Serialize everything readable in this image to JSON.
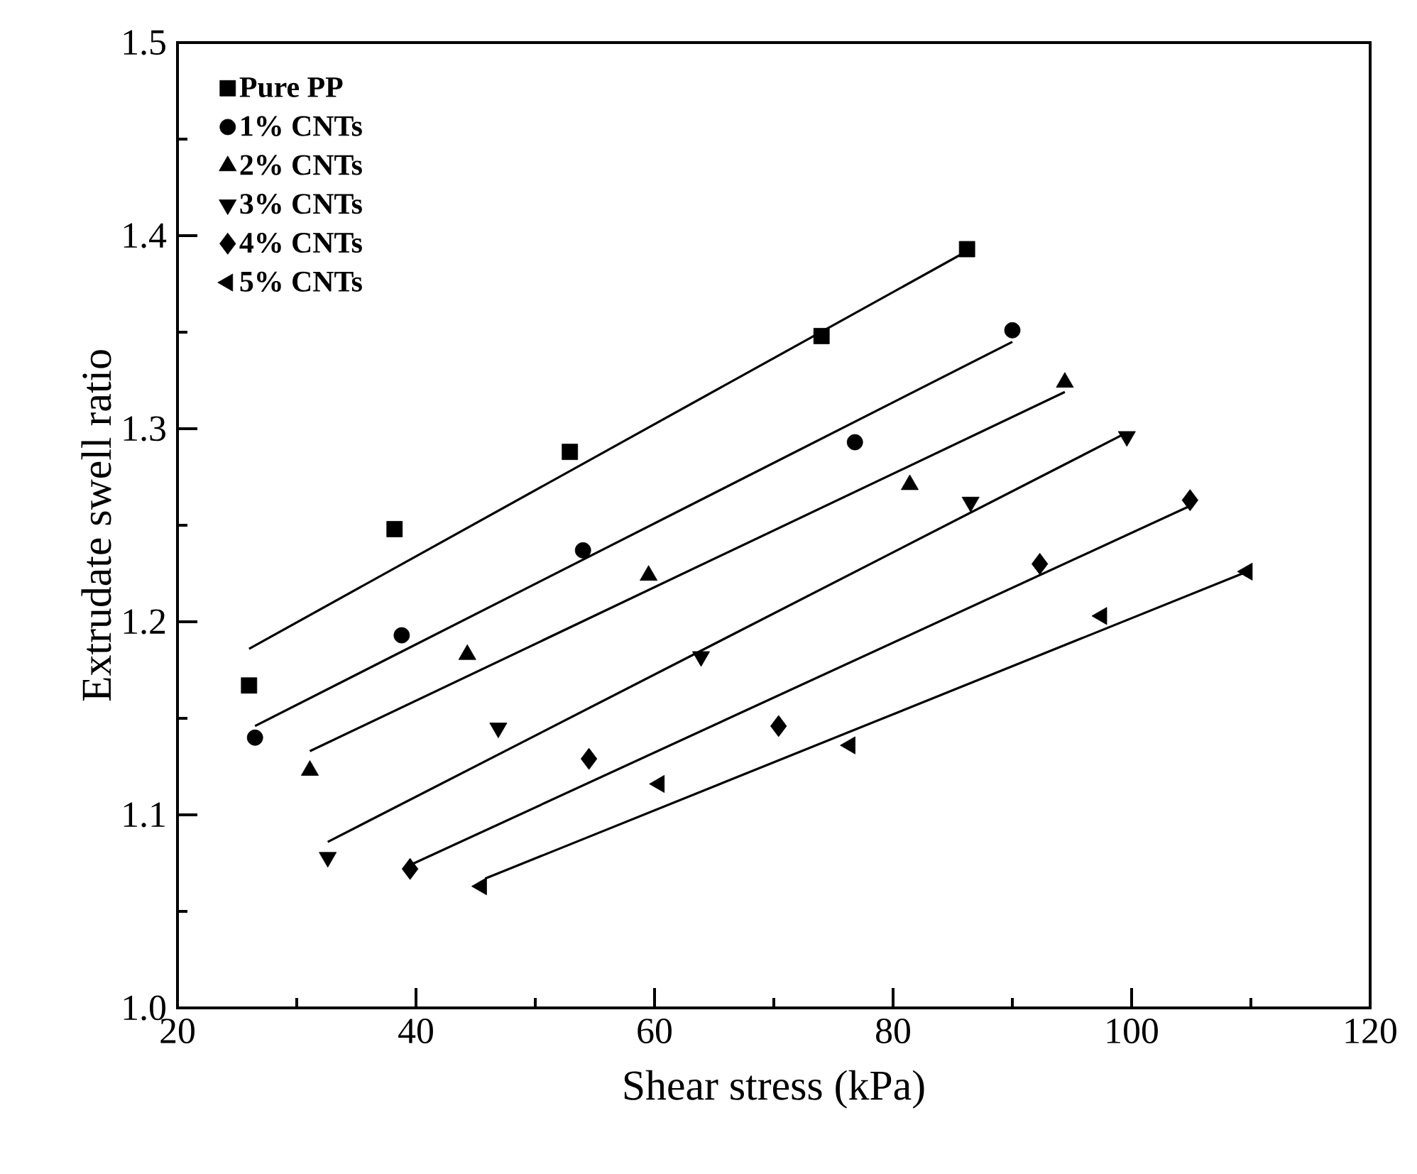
{
  "chart_data": {
    "type": "scatter",
    "xlabel": "Shear stress (kPa)",
    "ylabel": "Extrudate swell ratio",
    "xlim": [
      20,
      120
    ],
    "ylim": [
      1.0,
      1.5
    ],
    "xticks": [
      20,
      40,
      60,
      80,
      100,
      120
    ],
    "yticks": [
      {
        "value": 1.0,
        "label": "1.0"
      },
      1.1,
      1.2,
      1.3,
      1.4,
      1.5
    ],
    "legend": "top left",
    "series": [
      {
        "name": "**Pure PP**",
        "marker": "square",
        "color": "#000000",
        "x": [
          26.0,
          38.2,
          52.9,
          74.0,
          86.2
        ],
        "values": [
          1.167,
          1.248,
          1.288,
          1.348,
          1.393
        ]
      },
      {
        "name": "**1% CNTs**",
        "marker": "circle",
        "color": "#000000",
        "x": [
          26.5,
          38.8,
          54.0,
          76.8,
          90.0
        ],
        "values": [
          1.14,
          1.193,
          1.237,
          1.293,
          1.351
        ]
      },
      {
        "name": "**2% CNTs**",
        "marker": "triangle",
        "color": "#000000",
        "x": [
          31.1,
          44.3,
          59.5,
          81.4,
          94.4
        ],
        "values": [
          1.123,
          1.183,
          1.224,
          1.271,
          1.324
        ]
      },
      {
        "name": "**3% CNTs**",
        "marker": "triangle-down",
        "color": "#000000",
        "x": [
          32.6,
          46.9,
          63.9,
          86.5,
          99.6
        ],
        "values": [
          1.078,
          1.145,
          1.182,
          1.262,
          1.296
        ]
      },
      {
        "name": "**4% CNTs**",
        "marker": "diamond",
        "color": "#000000",
        "x": [
          39.5,
          54.5,
          70.4,
          92.3,
          104.9
        ],
        "values": [
          1.072,
          1.129,
          1.146,
          1.23,
          1.263
        ]
      },
      {
        "name": "**5% CNTs**",
        "marker": "triangle-left",
        "color": "#000000",
        "x": [
          45.5,
          60.4,
          76.4,
          97.5,
          109.7
        ],
        "values": [
          1.063,
          1.116,
          1.136,
          1.203,
          1.226
        ]
      },
      {
        "type": "line",
        "color": "#000000",
        "x": [
          26.0,
          86.2
        ],
        "values": [
          1.186,
          1.392
        ]
      },
      {
        "type": "line",
        "color": "#000000",
        "x": [
          26.5,
          90.0
        ],
        "values": [
          1.146,
          1.345
        ]
      },
      {
        "type": "line",
        "color": "#000000",
        "x": [
          31.1,
          94.4
        ],
        "values": [
          1.133,
          1.319
        ]
      },
      {
        "type": "line",
        "color": "#000000",
        "x": [
          32.6,
          99.6
        ],
        "values": [
          1.086,
          1.298
        ]
      },
      {
        "type": "line",
        "color": "#000000",
        "x": [
          39.5,
          104.9
        ],
        "values": [
          1.074,
          1.26
        ]
      },
      {
        "type": "line",
        "color": "#000000",
        "x": [
          45.8,
          109.7
        ],
        "values": [
          1.067,
          1.226
        ]
      }
    ]
  }
}
